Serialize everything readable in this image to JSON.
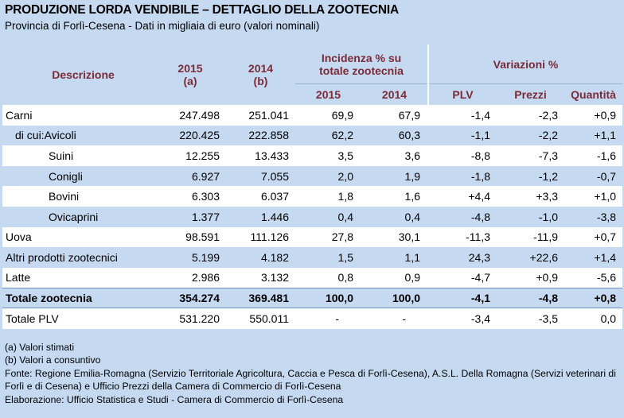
{
  "title": "PRODUZIONE LORDA VENDIBILE – DETTAGLIO DELLA ZOOTECNIA",
  "subtitle": "Provincia di Forlì-Cesena - Dati in migliaia di euro (valori nominali)",
  "headers": {
    "descrizione": "Descrizione",
    "y2015": "2015",
    "y2015_note": "(a)",
    "y2014": "2014",
    "y2014_note": "(b)",
    "incidenza_l1": "Incidenza % su",
    "incidenza_l2": "totale zootecnia",
    "variazioni": "Variazioni %",
    "inc2015": "2015",
    "inc2014": "2014",
    "plv": "PLV",
    "prezzi": "Prezzi",
    "quantita": "Quantità"
  },
  "rows": [
    {
      "label": "Carni",
      "v2015": "247.498",
      "v2014": "251.041",
      "i2015": "69,9",
      "i2014": "67,9",
      "plv": "-1,4",
      "prezzi": "-2,3",
      "qta": "+0,9"
    },
    {
      "prefix": "di cui:",
      "label": "Avicoli",
      "v2015": "220.425",
      "v2014": "222.858",
      "i2015": "62,2",
      "i2014": "60,3",
      "plv": "-1,1",
      "prezzi": "-2,2",
      "qta": "+1,1"
    },
    {
      "label": "Suini",
      "v2015": "12.255",
      "v2014": "13.433",
      "i2015": "3,5",
      "i2014": "3,6",
      "plv": "-8,8",
      "prezzi": "-7,3",
      "qta": "-1,6"
    },
    {
      "label": "Conigli",
      "v2015": "6.927",
      "v2014": "7.055",
      "i2015": "2,0",
      "i2014": "1,9",
      "plv": "-1,8",
      "prezzi": "-1,2",
      "qta": "-0,7"
    },
    {
      "label": "Bovini",
      "v2015": "6.303",
      "v2014": "6.037",
      "i2015": "1,8",
      "i2014": "1,6",
      "plv": "+4,4",
      "prezzi": "+3,3",
      "qta": "+1,0"
    },
    {
      "label": "Ovicaprini",
      "v2015": "1.377",
      "v2014": "1.446",
      "i2015": "0,4",
      "i2014": "0,4",
      "plv": "-4,8",
      "prezzi": "-1,0",
      "qta": "-3,8"
    },
    {
      "label": "Uova",
      "v2015": "98.591",
      "v2014": "111.126",
      "i2015": "27,8",
      "i2014": "30,1",
      "plv": "-11,3",
      "prezzi": "-11,9",
      "qta": "+0,7"
    },
    {
      "label": "Altri prodotti zootecnici",
      "v2015": "5.199",
      "v2014": "4.182",
      "i2015": "1,5",
      "i2014": "1,1",
      "plv": "24,3",
      "prezzi": "+22,6",
      "qta": "+1,4"
    },
    {
      "label": "Latte",
      "v2015": "2.986",
      "v2014": "3.132",
      "i2015": "0,8",
      "i2014": "0,9",
      "plv": "-4,7",
      "prezzi": "+0,9",
      "qta": "-5,6"
    },
    {
      "label": "Totale zootecnia",
      "v2015": "354.274",
      "v2014": "369.481",
      "i2015": "100,0",
      "i2014": "100,0",
      "plv": "-4,1",
      "prezzi": "-4,8",
      "qta": "+0,8"
    },
    {
      "label": "Totale PLV",
      "v2015": "531.220",
      "v2014": "550.011",
      "i2015": "-",
      "i2014": "-",
      "plv": "-3,4",
      "prezzi": "-3,5",
      "qta": "0,0"
    }
  ],
  "notes": {
    "a": "(a) Valori stimati",
    "b": "(b) Valori a consuntivo",
    "fonte": "Fonte: Regione Emilia-Romagna (Servizio Territoriale Agricoltura, Caccia e Pesca di Forlì-Cesena), A.S.L. Della Romagna (Servizi veterinari di Forlì e di Cesena) e Ufficio Prezzi della Camera di Commercio di Forlì-Cesena",
    "elaborazione": "Elaborazione: Ufficio Statistica e Studi - Camera di Commercio di Forlì-Cesena"
  }
}
